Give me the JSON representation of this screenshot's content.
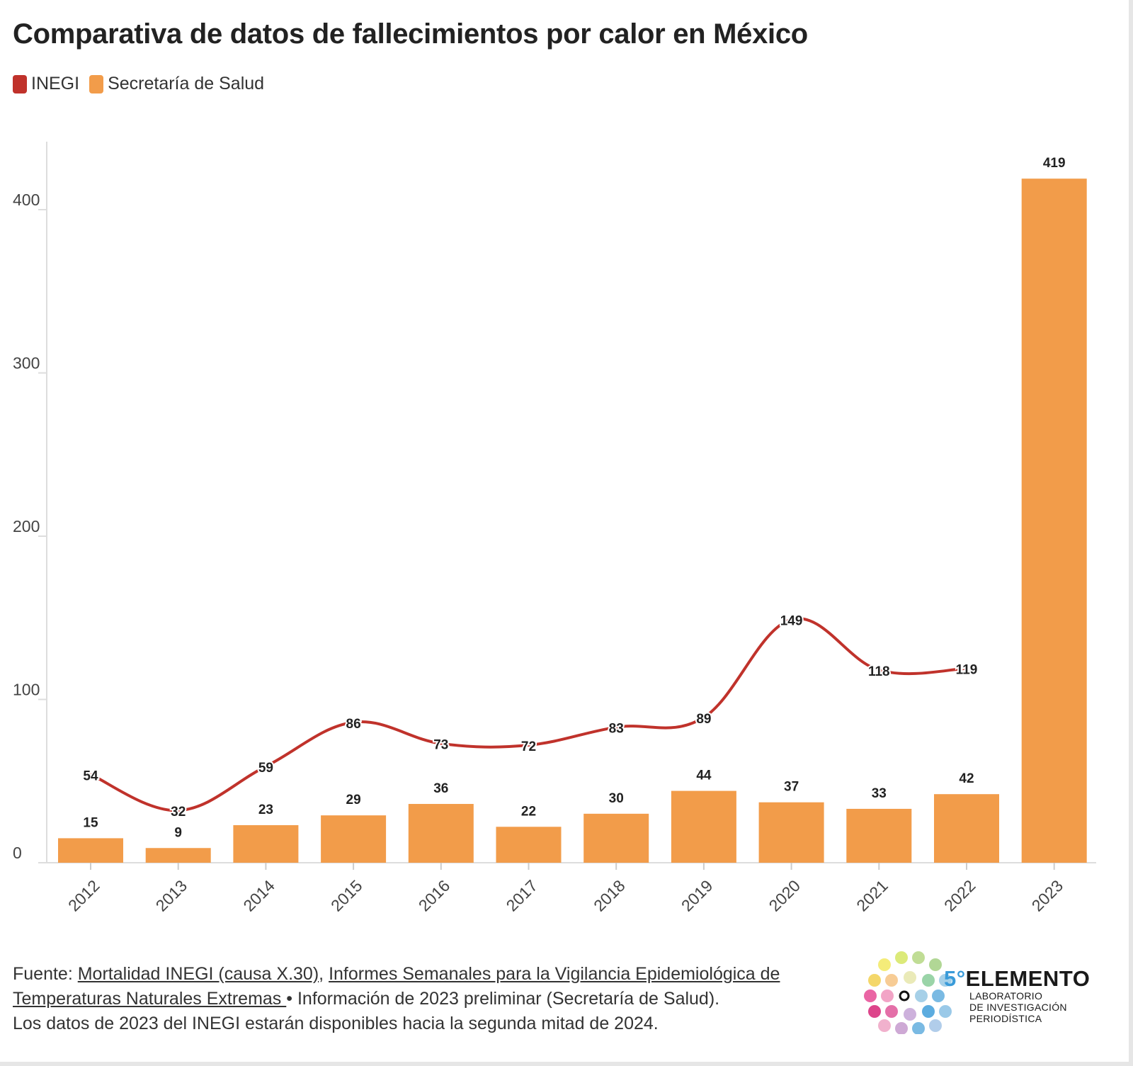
{
  "title": "Comparativa de datos de fallecimientos por calor en México",
  "legend": [
    {
      "label": "INEGI",
      "color": "#c0322b"
    },
    {
      "label": "Secretaría de Salud",
      "color": "#f29c4a"
    }
  ],
  "chart_data": {
    "type": "bar",
    "title": "Comparativa de datos de fallecimientos por calor en México",
    "categories": [
      "2012",
      "2013",
      "2014",
      "2015",
      "2016",
      "2017",
      "2018",
      "2019",
      "2020",
      "2021",
      "2022",
      "2023"
    ],
    "series": [
      {
        "name": "Secretaría de Salud",
        "type": "bar",
        "color": "#f29c4a",
        "values": [
          15,
          9,
          23,
          29,
          36,
          22,
          30,
          44,
          37,
          33,
          42,
          419
        ]
      },
      {
        "name": "INEGI",
        "type": "line",
        "color": "#c0322b",
        "values": [
          54,
          32,
          59,
          86,
          73,
          72,
          83,
          89,
          149,
          118,
          119,
          null
        ]
      }
    ],
    "yticks": [
      0,
      100,
      200,
      300,
      400
    ],
    "ylim": [
      0,
      440
    ],
    "grid": false,
    "legend_position": "top-left"
  },
  "footer": {
    "source_prefix": "Fuente: ",
    "link1": "Mortalidad INEGI (causa X.30)",
    "sep1": ", ",
    "link2": "Informes Semanales para la Vigilancia Epidemiológica de Temperaturas Naturales Extremas ",
    "note1": "• Información de 2023 preliminar (Secretaría de Salud).",
    "note2": "Los datos de 2023 del INEGI estarán disponibles hacia la segunda mitad de 2024."
  },
  "logo": {
    "prefix": "5°",
    "name": "ELEMENTO",
    "sub1": "LABORATORIO",
    "sub2": "DE INVESTIGACIÓN",
    "sub3": "PERIODÍSTICA"
  }
}
